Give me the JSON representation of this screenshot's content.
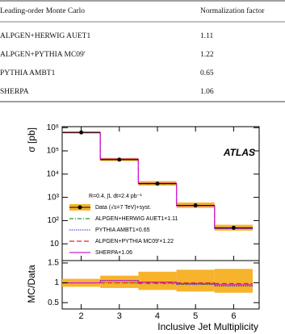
{
  "table": {
    "header": [
      "Leading-order Monte Carlo",
      "Normalization factor"
    ],
    "rows": [
      [
        "ALPGEN+HERWIG AUET1",
        "1.11"
      ],
      [
        "ALPGEN+PYTHIA MC09′",
        "1.22"
      ],
      [
        "PYTHIA AMBT1",
        "0.65"
      ],
      [
        "SHERPA",
        "1.06"
      ]
    ]
  },
  "chart_data": {
    "type": "step",
    "x_label": "Inclusive Jet Multiplicity",
    "y_label": "σ [pb]",
    "ratio_y_label": "MC/Data",
    "badge": "ATLAS",
    "annotation": "R=0.4, ∫L dt=2.4 pb⁻¹",
    "x": [
      2,
      3,
      4,
      5,
      6
    ],
    "bins": [
      1.5,
      2.5,
      3.5,
      4.5,
      5.5,
      6.5
    ],
    "xlim": [
      1.5,
      6.67
    ],
    "xticks": [
      2,
      3,
      4,
      5,
      6
    ],
    "log_y": true,
    "ylim": [
      1.9,
      1100000
    ],
    "yticks": [
      {
        "value": 10,
        "label": "10"
      },
      {
        "value": 100,
        "label": "10²"
      },
      {
        "value": 1000,
        "label": "10³"
      },
      {
        "value": 10000,
        "label": "10⁴"
      },
      {
        "value": 100000,
        "label": "10⁵"
      },
      {
        "value": 1000000,
        "label": "10⁶"
      }
    ],
    "data": {
      "name": "Data (√s=7 TeV)+syst.",
      "color": "#000000",
      "band_color": "#f7b32b",
      "values": [
        620000,
        42000,
        3900,
        450,
        49
      ],
      "syst_low": [
        558000,
        36500,
        3200,
        350,
        37
      ],
      "syst_high": [
        682000,
        49600,
        5000,
        600,
        66
      ]
    },
    "series": [
      {
        "name": "ALPGEN+HERWIG AUET1×1.11",
        "color": "#1f9a3a",
        "line_style": "dash-dot",
        "values": [
          620000,
          42000,
          3800,
          440,
          47
        ],
        "ratio": [
          1.0,
          1.0,
          0.98,
          0.97,
          0.95
        ]
      },
      {
        "name": "PYTHIA AMBT1×0.65",
        "color": "#1c2fd6",
        "line_style": "dotted",
        "values": [
          620000,
          44500,
          4000,
          430,
          45
        ],
        "ratio": [
          1.0,
          1.06,
          1.02,
          0.96,
          0.92
        ]
      },
      {
        "name": "ALPGEN+PYTHIA MC09′×1.22",
        "color": "#e8202a",
        "line_style": "dashed",
        "values": [
          620000,
          42000,
          3900,
          450,
          48
        ],
        "ratio": [
          1.0,
          1.0,
          1.0,
          1.0,
          0.98
        ]
      },
      {
        "name": "SHERPA×1.06",
        "color": "#d21dd2",
        "line_style": "solid",
        "values": [
          620000,
          44000,
          4000,
          440,
          47
        ],
        "ratio": [
          1.0,
          1.05,
          1.02,
          0.98,
          0.95
        ]
      }
    ],
    "ratio": {
      "ylim": [
        0.34,
        1.56
      ],
      "yticks": [
        0.5,
        1,
        1.5
      ],
      "syst_low": [
        0.9,
        0.87,
        0.82,
        0.78,
        0.75
      ],
      "syst_high": [
        1.1,
        1.18,
        1.28,
        1.33,
        1.35
      ]
    }
  }
}
